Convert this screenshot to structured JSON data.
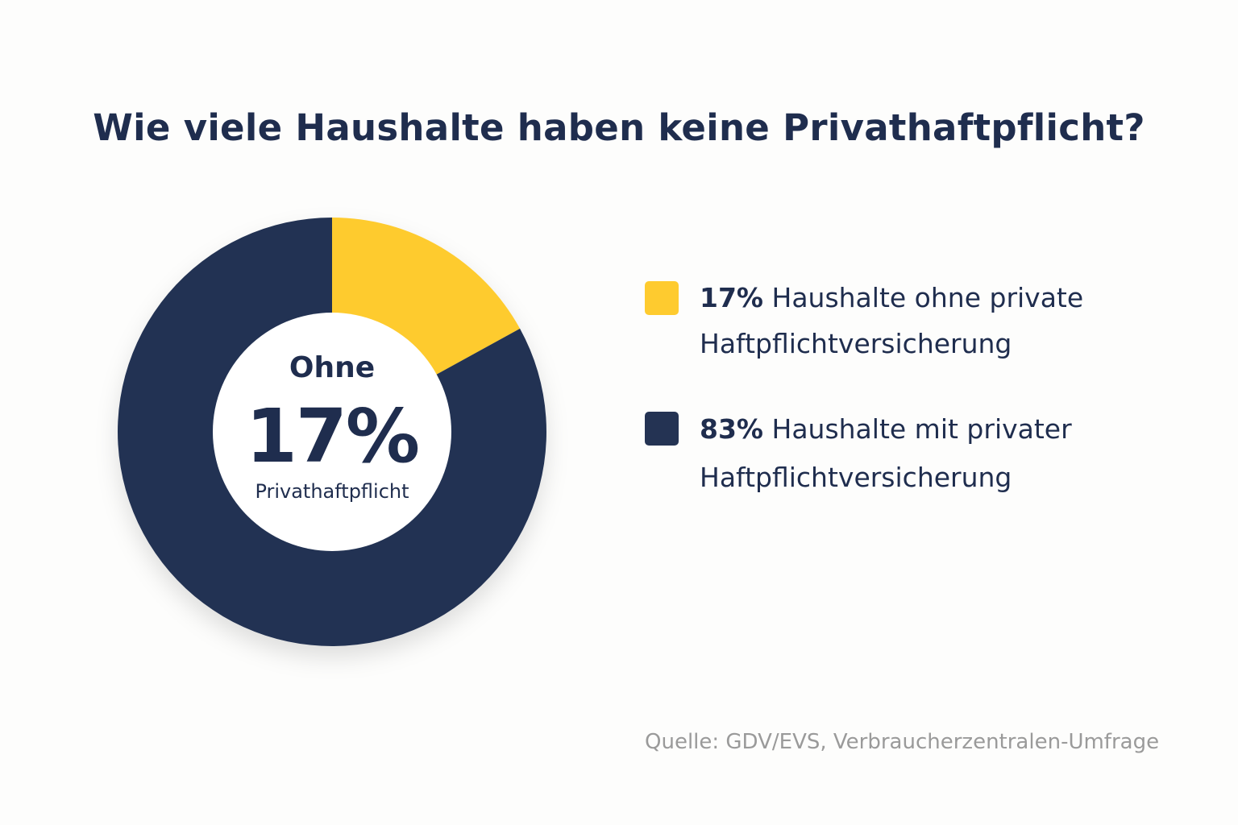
{
  "title": "Wie viele Haushalte haben keine Privathaftpflicht?",
  "chart_data": {
    "type": "pie",
    "donut": true,
    "title": "Wie viele Haushalte haben keine Privathaftpflicht?",
    "categories": [
      "Haushalte ohne private Haftpflichtversicherung",
      "Haushalte mit privater Haftpflichtversicherung"
    ],
    "values": [
      17,
      83
    ],
    "colors": [
      "#fecb2f",
      "#243353"
    ],
    "center_label": {
      "top": "Ohne",
      "value": "17%",
      "bottom": "Privathaftpflicht"
    },
    "legend": [
      {
        "pct": "17%",
        "line1": "Haushalte ohne private",
        "line2": "Haftpflichtversicherung",
        "color": "#fecb2f"
      },
      {
        "pct": "83%",
        "line1": "Haushalte mit privater",
        "line2": "Haftpflichtversicherung",
        "color": "#243353"
      }
    ],
    "legend_position": "right"
  },
  "source": "Quelle: GDV/EVS, Verbraucherzentralen-Umfrage"
}
